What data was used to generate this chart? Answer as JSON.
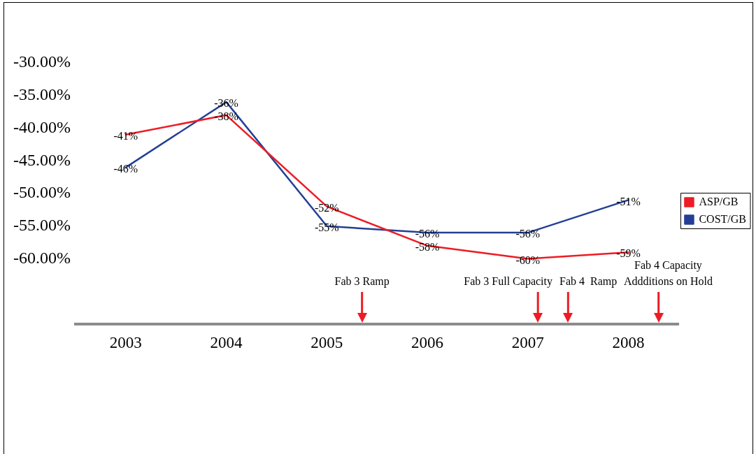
{
  "chart_data": {
    "type": "line",
    "x": [
      2003,
      2004,
      2005,
      2006,
      2007,
      2008
    ],
    "series": [
      {
        "name": "ASP/GB",
        "color": "#ed1c24",
        "values": [
          -41,
          -38,
          -52,
          -58,
          -60,
          -59
        ],
        "value_labels": [
          "-41%",
          "-38%",
          "-52%",
          "-58%",
          "-60%",
          "-59%"
        ]
      },
      {
        "name": "COST/GB",
        "color": "#233f95",
        "values": [
          -46,
          -36,
          -55,
          -56,
          -56,
          -51
        ],
        "value_labels": [
          "-46%",
          "-36%",
          "-55%",
          "-56%",
          "-56%",
          "-51%"
        ]
      }
    ],
    "xlim": [
      2002.5,
      2008.5
    ],
    "xticks": [
      2003,
      2004,
      2005,
      2006,
      2007,
      2008
    ],
    "ylim": [
      -70,
      -30
    ],
    "yticks": [
      {
        "value": -30,
        "label": "-30.00%"
      },
      {
        "value": -35,
        "label": "-35.00%"
      },
      {
        "value": -40,
        "label": "-40.00%"
      },
      {
        "value": -45,
        "label": "-45.00%"
      },
      {
        "value": -50,
        "label": "-50.00%"
      },
      {
        "value": -55,
        "label": "-55.00%"
      },
      {
        "value": -60,
        "label": "-60.00%"
      }
    ],
    "legend": "right",
    "marker": "none",
    "ref_lines": [
      {
        "axis": "x",
        "value": 2005.35,
        "label": "Fab 3 Ramp",
        "color": "#ed1c24"
      },
      {
        "axis": "x",
        "value": 2007.1,
        "label": "Fab 3 Full Capacity",
        "color": "#ed1c24"
      },
      {
        "axis": "x",
        "value": 2007.4,
        "label": "Fab 4  Ramp",
        "color": "#ed1c24"
      },
      {
        "axis": "x",
        "value": 2008.3,
        "label": "Fab 4 Capacity Addditions on Hold",
        "color": "#ed1c24"
      }
    ]
  }
}
